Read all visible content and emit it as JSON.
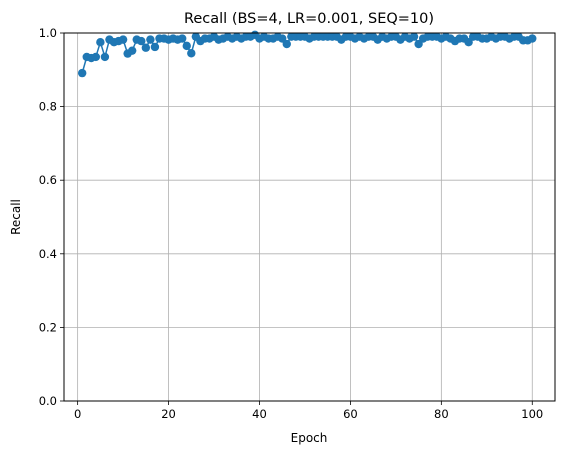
{
  "chart_data": {
    "type": "line",
    "title": "Recall (BS=4, LR=0.001, SEQ=10)",
    "xlabel": "Epoch",
    "ylabel": "Recall",
    "xlim": [
      -3,
      105
    ],
    "ylim": [
      0.0,
      1.0
    ],
    "xticks": [
      0,
      20,
      40,
      60,
      80,
      100
    ],
    "yticks": [
      0.0,
      0.2,
      0.4,
      0.6,
      0.8,
      1.0
    ],
    "xtick_labels": [
      "0",
      "20",
      "40",
      "60",
      "80",
      "100"
    ],
    "ytick_labels": [
      "0.0",
      "0.2",
      "0.4",
      "0.6",
      "0.8",
      "1.0"
    ],
    "grid": true,
    "marker": "circle",
    "color": "#1f77b4",
    "series": [
      {
        "x": [
          1,
          2,
          3,
          4,
          5,
          6,
          7,
          8,
          9,
          10,
          11,
          12,
          13,
          14,
          15,
          16,
          17,
          18,
          19,
          20,
          21,
          22,
          23,
          24,
          25,
          26,
          27,
          28,
          29,
          30,
          31,
          32,
          33,
          34,
          35,
          36,
          37,
          38,
          39,
          40,
          41,
          42,
          43,
          44,
          45,
          46,
          47,
          48,
          49,
          50,
          51,
          52,
          53,
          54,
          55,
          56,
          57,
          58,
          59,
          60,
          61,
          62,
          63,
          64,
          65,
          66,
          67,
          68,
          69,
          70,
          71,
          72,
          73,
          74,
          75,
          76,
          77,
          78,
          79,
          80,
          81,
          82,
          83,
          84,
          85,
          86,
          87,
          88,
          89,
          90,
          91,
          92,
          93,
          94,
          95,
          96,
          97,
          98,
          99,
          100
        ],
        "y": [
          0.891,
          0.935,
          0.932,
          0.935,
          0.975,
          0.935,
          0.982,
          0.975,
          0.978,
          0.982,
          0.944,
          0.952,
          0.982,
          0.978,
          0.96,
          0.982,
          0.962,
          0.985,
          0.985,
          0.982,
          0.985,
          0.982,
          0.985,
          0.965,
          0.945,
          0.99,
          0.978,
          0.985,
          0.985,
          0.99,
          0.982,
          0.985,
          0.99,
          0.985,
          0.99,
          0.985,
          0.99,
          0.99,
          0.995,
          0.985,
          0.99,
          0.985,
          0.985,
          0.99,
          0.985,
          0.97,
          0.99,
          0.99,
          0.99,
          0.99,
          0.985,
          0.99,
          0.99,
          0.99,
          0.99,
          0.99,
          0.99,
          0.982,
          0.99,
          0.99,
          0.985,
          0.99,
          0.985,
          0.99,
          0.99,
          0.982,
          0.99,
          0.985,
          0.99,
          0.99,
          0.982,
          0.99,
          0.985,
          0.99,
          0.97,
          0.985,
          0.99,
          0.99,
          0.99,
          0.985,
          0.99,
          0.985,
          0.978,
          0.985,
          0.985,
          0.975,
          0.99,
          0.99,
          0.985,
          0.985,
          0.99,
          0.985,
          0.99,
          0.99,
          0.985,
          0.99,
          0.99,
          0.98,
          0.98,
          0.985
        ]
      }
    ]
  }
}
